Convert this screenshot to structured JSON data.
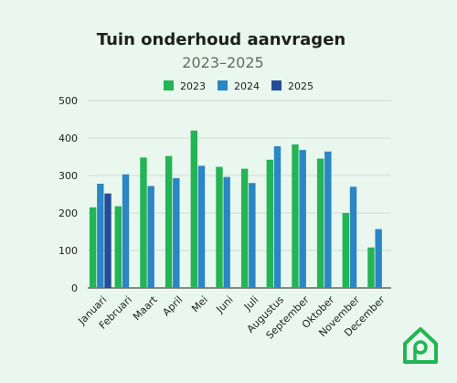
{
  "chart_data": {
    "type": "bar",
    "title": "Tuin onderhoud aanvragen",
    "subtitle": "2023–2025",
    "categories": [
      "Januari",
      "Februari",
      "Maart",
      "April",
      "Mei",
      "Juni",
      "Juli",
      "Augustus",
      "September",
      "Oktober",
      "November",
      "December"
    ],
    "series": [
      {
        "name": "2023",
        "color": "#22b455",
        "values": [
          215,
          218,
          348,
          352,
          420,
          323,
          318,
          342,
          383,
          345,
          200,
          108
        ]
      },
      {
        "name": "2024",
        "color": "#2a86c4",
        "values": [
          278,
          303,
          272,
          293,
          326,
          296,
          280,
          378,
          368,
          364,
          270,
          157
        ]
      },
      {
        "name": "2025",
        "color": "#234d96",
        "values": [
          252,
          null,
          null,
          null,
          null,
          null,
          null,
          null,
          null,
          null,
          null,
          null
        ]
      }
    ],
    "ylim": [
      0,
      500
    ],
    "yticks": [
      0,
      100,
      200,
      300,
      400,
      500
    ],
    "xlabel": "",
    "ylabel": "",
    "grid": true,
    "legend": "top-center"
  },
  "logo": {
    "icon": "house-key-logo-icon",
    "color": "#22b455"
  }
}
